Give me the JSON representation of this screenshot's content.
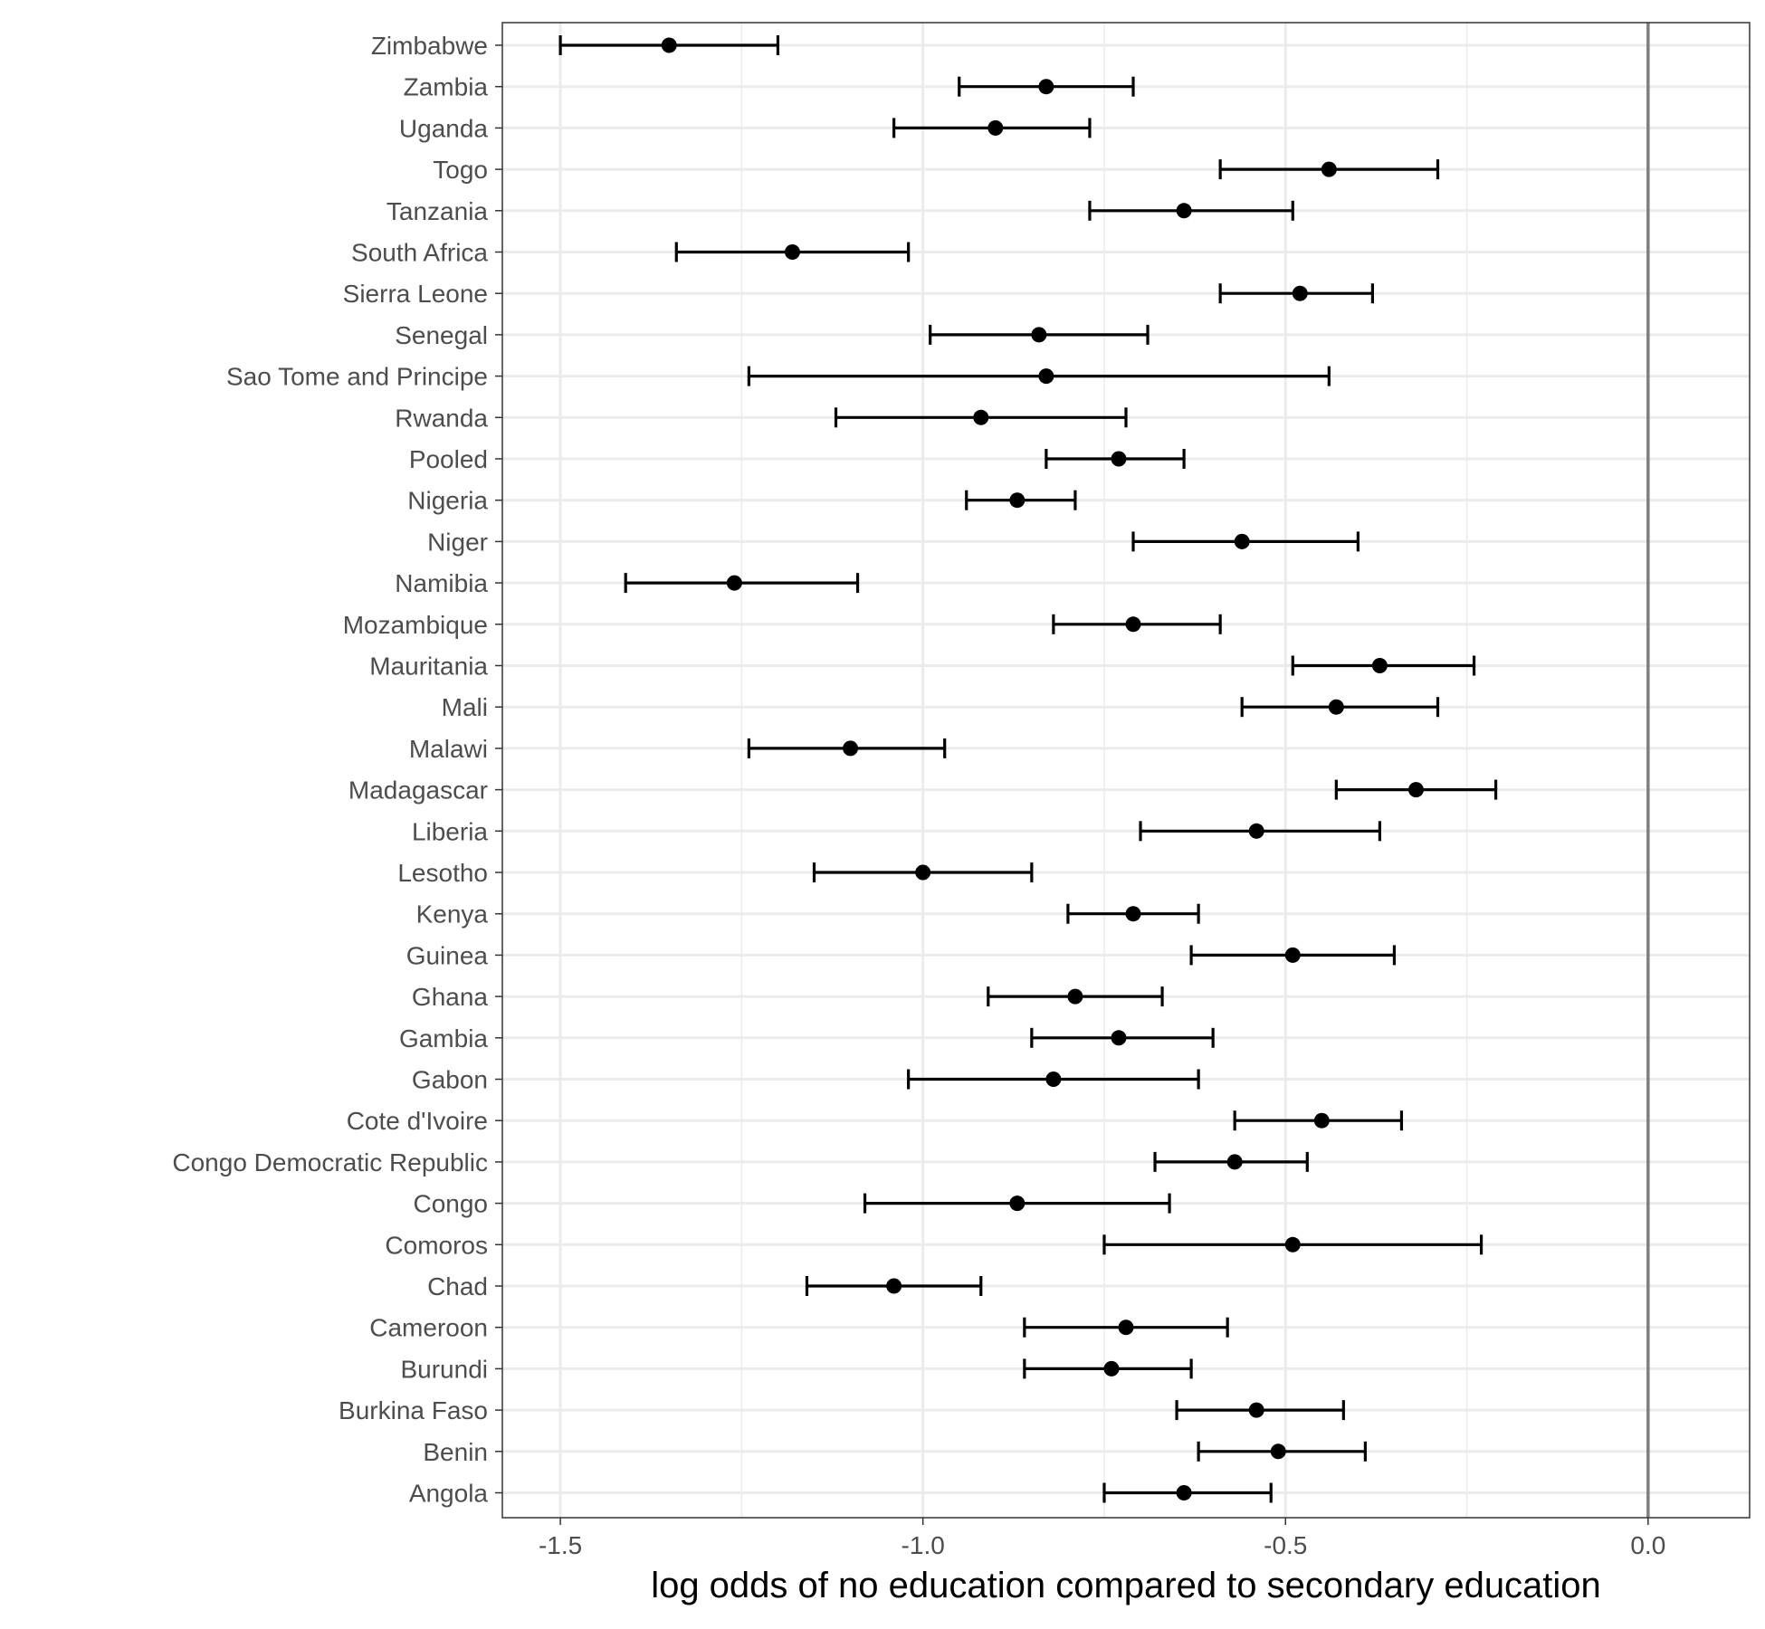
{
  "chart_data": {
    "type": "scatter",
    "subtype": "forest-plot-with-error-bars",
    "title": "",
    "xlabel": "log odds of no education compared to secondary education",
    "ylabel": "",
    "xlim": [
      -1.58,
      0.14
    ],
    "x_ticks": [
      -1.5,
      -1.0,
      -0.5,
      0.0
    ],
    "x_tick_labels": [
      "-1.5",
      "-1.0",
      "-0.5",
      "0.0"
    ],
    "reference_line_x": 0.0,
    "grid": true,
    "legend": "none",
    "colors": {
      "point": "#000000",
      "errorbar": "#000000",
      "reference_line": "#7f7f7f",
      "grid": "#ebebeb",
      "panel_border": "#333333"
    },
    "points": [
      {
        "label": "Zimbabwe",
        "estimate": -1.35,
        "lower": -1.5,
        "upper": -1.2
      },
      {
        "label": "Zambia",
        "estimate": -0.83,
        "lower": -0.95,
        "upper": -0.71
      },
      {
        "label": "Uganda",
        "estimate": -0.9,
        "lower": -1.04,
        "upper": -0.77
      },
      {
        "label": "Togo",
        "estimate": -0.44,
        "lower": -0.59,
        "upper": -0.29
      },
      {
        "label": "Tanzania",
        "estimate": -0.64,
        "lower": -0.77,
        "upper": -0.49
      },
      {
        "label": "South Africa",
        "estimate": -1.18,
        "lower": -1.34,
        "upper": -1.02
      },
      {
        "label": "Sierra Leone",
        "estimate": -0.48,
        "lower": -0.59,
        "upper": -0.38
      },
      {
        "label": "Senegal",
        "estimate": -0.84,
        "lower": -0.99,
        "upper": -0.69
      },
      {
        "label": "Sao Tome and Principe",
        "estimate": -0.83,
        "lower": -1.24,
        "upper": -0.44
      },
      {
        "label": "Rwanda",
        "estimate": -0.92,
        "lower": -1.12,
        "upper": -0.72
      },
      {
        "label": "Pooled",
        "estimate": -0.73,
        "lower": -0.83,
        "upper": -0.64
      },
      {
        "label": "Nigeria",
        "estimate": -0.87,
        "lower": -0.94,
        "upper": -0.79
      },
      {
        "label": "Niger",
        "estimate": -0.56,
        "lower": -0.71,
        "upper": -0.4
      },
      {
        "label": "Namibia",
        "estimate": -1.26,
        "lower": -1.41,
        "upper": -1.09
      },
      {
        "label": "Mozambique",
        "estimate": -0.71,
        "lower": -0.82,
        "upper": -0.59
      },
      {
        "label": "Mauritania",
        "estimate": -0.37,
        "lower": -0.49,
        "upper": -0.24
      },
      {
        "label": "Mali",
        "estimate": -0.43,
        "lower": -0.56,
        "upper": -0.29
      },
      {
        "label": "Malawi",
        "estimate": -1.1,
        "lower": -1.24,
        "upper": -0.97
      },
      {
        "label": "Madagascar",
        "estimate": -0.32,
        "lower": -0.43,
        "upper": -0.21
      },
      {
        "label": "Liberia",
        "estimate": -0.54,
        "lower": -0.7,
        "upper": -0.37
      },
      {
        "label": "Lesotho",
        "estimate": -1.0,
        "lower": -1.15,
        "upper": -0.85
      },
      {
        "label": "Kenya",
        "estimate": -0.71,
        "lower": -0.8,
        "upper": -0.62
      },
      {
        "label": "Guinea",
        "estimate": -0.49,
        "lower": -0.63,
        "upper": -0.35
      },
      {
        "label": "Ghana",
        "estimate": -0.79,
        "lower": -0.91,
        "upper": -0.67
      },
      {
        "label": "Gambia",
        "estimate": -0.73,
        "lower": -0.85,
        "upper": -0.6
      },
      {
        "label": "Gabon",
        "estimate": -0.82,
        "lower": -1.02,
        "upper": -0.62
      },
      {
        "label": "Cote d'Ivoire",
        "estimate": -0.45,
        "lower": -0.57,
        "upper": -0.34
      },
      {
        "label": "Congo Democratic Republic",
        "estimate": -0.57,
        "lower": -0.68,
        "upper": -0.47
      },
      {
        "label": "Congo",
        "estimate": -0.87,
        "lower": -1.08,
        "upper": -0.66
      },
      {
        "label": "Comoros",
        "estimate": -0.49,
        "lower": -0.75,
        "upper": -0.23
      },
      {
        "label": "Chad",
        "estimate": -1.04,
        "lower": -1.16,
        "upper": -0.92
      },
      {
        "label": "Cameroon",
        "estimate": -0.72,
        "lower": -0.86,
        "upper": -0.58
      },
      {
        "label": "Burundi",
        "estimate": -0.74,
        "lower": -0.86,
        "upper": -0.63
      },
      {
        "label": "Burkina Faso",
        "estimate": -0.54,
        "lower": -0.65,
        "upper": -0.42
      },
      {
        "label": "Benin",
        "estimate": -0.51,
        "lower": -0.62,
        "upper": -0.39
      },
      {
        "label": "Angola",
        "estimate": -0.64,
        "lower": -0.75,
        "upper": -0.52
      }
    ]
  }
}
